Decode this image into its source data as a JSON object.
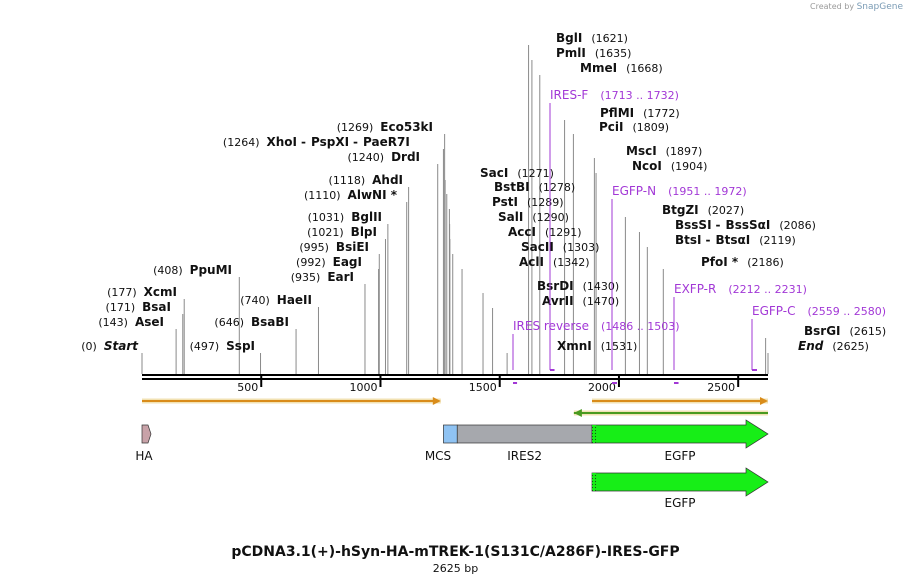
{
  "credit": {
    "prefix": "Created by",
    "brand": "SnapGene"
  },
  "map": {
    "title": "pCDNA3.1(+)-hSyn-HA-mTREK-1(S131C/A286F)-IRES-GFP",
    "length_label": "2625 bp",
    "length": 2625,
    "ticks": [
      500,
      1000,
      1500,
      2000,
      2500
    ]
  },
  "sites": [
    {
      "label": "Start",
      "pos": 0,
      "num": "(0)",
      "italic": true
    },
    {
      "label": "AseI",
      "pos": 143,
      "num": "(143)"
    },
    {
      "label": "BsaI",
      "pos": 171,
      "num": "(171)"
    },
    {
      "label": "XcmI",
      "pos": 177,
      "num": "(177)"
    },
    {
      "label": "PpuMI",
      "pos": 408,
      "num": "(408)"
    },
    {
      "label": "SspI",
      "pos": 497,
      "num": "(497)"
    },
    {
      "label": "BsaBI",
      "pos": 646,
      "num": "(646)"
    },
    {
      "label": "HaeII",
      "pos": 740,
      "num": "(740)"
    },
    {
      "label": "EarI",
      "pos": 935,
      "num": "(935)"
    },
    {
      "label": "EagI",
      "pos": 992,
      "num": "(992)"
    },
    {
      "label": "BsiEI",
      "pos": 995,
      "num": "(995)"
    },
    {
      "label": "BlpI",
      "pos": 1021,
      "num": "(1021)"
    },
    {
      "label": "BglII",
      "pos": 1031,
      "num": "(1031)"
    },
    {
      "label": "AlwNI *",
      "pos": 1110,
      "num": "(1110)"
    },
    {
      "label": "AhdI",
      "pos": 1118,
      "num": "(1118)"
    },
    {
      "label": "DrdI",
      "pos": 1240,
      "num": "(1240)"
    },
    {
      "label": "XhoI",
      "pos": 1264,
      "num": "(1264)",
      "extra": [
        "PspXI",
        "PaeR7I"
      ]
    },
    {
      "label": "Eco53kI",
      "pos": 1269,
      "num": "(1269)"
    },
    {
      "label": "SacI",
      "pos": 1271,
      "num": "(1271)"
    },
    {
      "label": "BstBI",
      "pos": 1278,
      "num": "(1278)"
    },
    {
      "label": "PstI",
      "pos": 1289,
      "num": "(1289)"
    },
    {
      "label": "SalI",
      "pos": 1290,
      "num": "(1290)"
    },
    {
      "label": "AccI",
      "pos": 1291,
      "num": "(1291)"
    },
    {
      "label": "SacII",
      "pos": 1303,
      "num": "(1303)"
    },
    {
      "label": "AclI",
      "pos": 1342,
      "num": "(1342)"
    },
    {
      "label": "BsrDI",
      "pos": 1430,
      "num": "(1430)"
    },
    {
      "label": "AvrII",
      "pos": 1470,
      "num": "(1470)"
    },
    {
      "label": "XmnI",
      "pos": 1531,
      "num": "(1531)"
    },
    {
      "label": "BglI",
      "pos": 1621,
      "num": "(1621)"
    },
    {
      "label": "PmlI",
      "pos": 1635,
      "num": "(1635)"
    },
    {
      "label": "MmeI",
      "pos": 1668,
      "num": "(1668)"
    },
    {
      "label": "PflMI",
      "pos": 1772,
      "num": "(1772)"
    },
    {
      "label": "PciI",
      "pos": 1809,
      "num": "(1809)"
    },
    {
      "label": "MscI",
      "pos": 1897,
      "num": "(1897)"
    },
    {
      "label": "NcoI",
      "pos": 1904,
      "num": "(1904)"
    },
    {
      "label": "BtgZI",
      "pos": 2027,
      "num": "(2027)"
    },
    {
      "label": "BssSI",
      "pos": 2086,
      "num": "(2086)",
      "extra": [
        "BssSαI"
      ]
    },
    {
      "label": "BtsI",
      "pos": 2119,
      "num": "(2119)",
      "extra": [
        "BtsαI"
      ]
    },
    {
      "label": "PfoI *",
      "pos": 2186,
      "num": "(2186)"
    },
    {
      "label": "BsrGI",
      "pos": 2615,
      "num": "(2615)"
    },
    {
      "label": "End",
      "pos": 2625,
      "num": "(2625)",
      "italic": true
    }
  ],
  "primers": [
    {
      "label": "IRES reverse",
      "range": "(1486 .. 1503)",
      "start": 1486,
      "end": 1503,
      "dir": -1
    },
    {
      "label": "IRES-F",
      "range": "(1713 .. 1732)",
      "start": 1713,
      "end": 1732,
      "dir": 1
    },
    {
      "label": "EGFP-N",
      "range": "(1951 .. 1972)",
      "start": 1951,
      "end": 1972,
      "dir": -1
    },
    {
      "label": "EXFP-R",
      "range": "(2212 .. 2231)",
      "start": 2212,
      "end": 2231,
      "dir": -1
    },
    {
      "label": "EGFP-C",
      "range": "(2559 .. 2580)",
      "start": 2559,
      "end": 2580,
      "dir": 1
    }
  ],
  "orfs": [
    {
      "name": "orf-forward-1",
      "start": 0,
      "end": 1253,
      "dir": 1
    },
    {
      "name": "orf-forward-2",
      "start": 1887,
      "end": 2625,
      "dir": 1
    },
    {
      "name": "orf-reverse-1",
      "start": 1811,
      "end": 2625,
      "dir": -1
    }
  ],
  "features": [
    {
      "label": "HA",
      "start": 0,
      "end": 27,
      "color": "#c8a2a8"
    },
    {
      "label": "MCS",
      "start": 1264,
      "end": 1322,
      "color": "#8fc3f3"
    },
    {
      "label": "IRES2",
      "start": 1322,
      "end": 1887,
      "color": "#a6a8ad"
    },
    {
      "label": "EGFP",
      "start": 1887,
      "end": 2625,
      "color": "#17ee17",
      "arrow": true
    }
  ],
  "features_row2": [
    {
      "label": "EGFP",
      "start": 1887,
      "end": 2625,
      "color": "#17ee17",
      "arrow": true
    }
  ],
  "colors": {
    "backbone": "#000000",
    "primer": "#a238d6",
    "orf": "#d98c1a",
    "orf_reverse": "#4a9a20",
    "cut_line": "#8a8a8a"
  }
}
